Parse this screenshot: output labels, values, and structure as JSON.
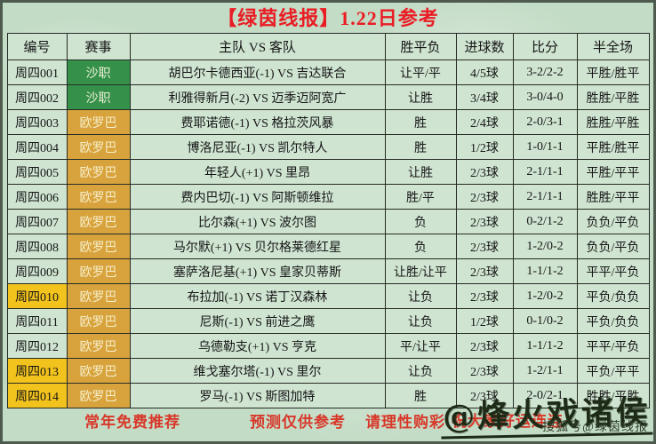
{
  "title": "【绿茵线报】1.22日参考",
  "columns": [
    "编号",
    "赛事",
    "主队 VS 客队",
    "胜平负",
    "进球数",
    "比分",
    "半全场"
  ],
  "rows": [
    {
      "id": "周四001",
      "league": "沙职",
      "league_type": "saudi",
      "id_highlight": false,
      "match": "胡巴尔卡德西亚(-1) VS 吉达联合",
      "wdl": "让平/平",
      "goals": "4/5球",
      "score": "3-2/2-2",
      "half": "平胜/胜平"
    },
    {
      "id": "周四002",
      "league": "沙职",
      "league_type": "saudi",
      "id_highlight": false,
      "match": "利雅得新月(-2) VS 迈季迈阿宽广",
      "wdl": "让胜",
      "goals": "3/4球",
      "score": "3-0/4-0",
      "half": "胜胜/平胜"
    },
    {
      "id": "周四003",
      "league": "欧罗巴",
      "league_type": "europa",
      "id_highlight": false,
      "match": "费耶诺德(-1) VS 格拉茨风暴",
      "wdl": "胜",
      "goals": "2/4球",
      "score": "2-0/3-1",
      "half": "胜胜/平胜"
    },
    {
      "id": "周四004",
      "league": "欧罗巴",
      "league_type": "europa",
      "id_highlight": false,
      "match": "博洛尼亚(-1) VS 凯尔特人",
      "wdl": "胜",
      "goals": "1/2球",
      "score": "1-0/1-1",
      "half": "平胜/胜平"
    },
    {
      "id": "周四005",
      "league": "欧罗巴",
      "league_type": "europa",
      "id_highlight": false,
      "match": "年轻人(+1) VS 里昂",
      "wdl": "让胜",
      "goals": "2/3球",
      "score": "2-1/1-1",
      "half": "平胜/平平"
    },
    {
      "id": "周四006",
      "league": "欧罗巴",
      "league_type": "europa",
      "id_highlight": false,
      "match": "费内巴切(-1) VS 阿斯顿维拉",
      "wdl": "胜/平",
      "goals": "2/3球",
      "score": "2-1/1-1",
      "half": "胜胜/平平"
    },
    {
      "id": "周四007",
      "league": "欧罗巴",
      "league_type": "europa",
      "id_highlight": false,
      "match": "比尔森(+1) VS 波尔图",
      "wdl": "负",
      "goals": "2/3球",
      "score": "0-2/1-2",
      "half": "负负/平负"
    },
    {
      "id": "周四008",
      "league": "欧罗巴",
      "league_type": "europa",
      "id_highlight": false,
      "match": "马尔默(+1) VS 贝尔格莱德红星",
      "wdl": "负",
      "goals": "2/3球",
      "score": "1-2/0-2",
      "half": "负负/平负"
    },
    {
      "id": "周四009",
      "league": "欧罗巴",
      "league_type": "europa",
      "id_highlight": false,
      "match": "塞萨洛尼基(+1) VS 皇家贝蒂斯",
      "wdl": "让胜/让平",
      "goals": "2/3球",
      "score": "1-1/1-2",
      "half": "平平/平负"
    },
    {
      "id": "周四010",
      "league": "欧罗巴",
      "league_type": "europa",
      "id_highlight": true,
      "match": "布拉加(-1) VS 诺丁汉森林",
      "wdl": "让负",
      "goals": "2/3球",
      "score": "1-2/0-2",
      "half": "平负/负负"
    },
    {
      "id": "周四011",
      "league": "欧罗巴",
      "league_type": "europa",
      "id_highlight": false,
      "match": "尼斯(-1) VS 前进之鹰",
      "wdl": "让负",
      "goals": "1/2球",
      "score": "0-1/0-2",
      "half": "平负/负负"
    },
    {
      "id": "周四012",
      "league": "欧罗巴",
      "league_type": "europa",
      "id_highlight": false,
      "match": "乌德勒支(+1) VS 亨克",
      "wdl": "平/让平",
      "goals": "2/3球",
      "score": "1-1/1-2",
      "half": "平平/平负"
    },
    {
      "id": "周四013",
      "league": "欧罗巴",
      "league_type": "europa",
      "id_highlight": true,
      "match": "维戈塞尔塔(-1) VS 里尔",
      "wdl": "让负",
      "goals": "2/3球",
      "score": "1-2/1-1",
      "half": "平负/平平"
    },
    {
      "id": "周四014",
      "league": "欧罗巴",
      "league_type": "europa",
      "id_highlight": true,
      "match": "罗马(-1) VS 斯图加特",
      "wdl": "胜",
      "goals": "2/3球",
      "score": "2-0/2-1",
      "half": "胜胜/平胜"
    }
  ],
  "footer": {
    "free_text": "常年免费推荐",
    "disclaimer_text": "预测仅供参考",
    "rational_text": "请理性购彩",
    "luck_text": "祝大家好运连连"
  },
  "watermark": {
    "handle": "@烽火戏诸侯",
    "sub": "搜狐号@绿茵线报"
  },
  "colors": {
    "background": "#c3dcc6",
    "cell": "#cfe4d1",
    "saudi_league": "#35914a",
    "europa_league": "#d8a33c",
    "highlight_id": "#f3c31d",
    "accent_red": "#d8382a",
    "title_red": "#ea1c24"
  }
}
